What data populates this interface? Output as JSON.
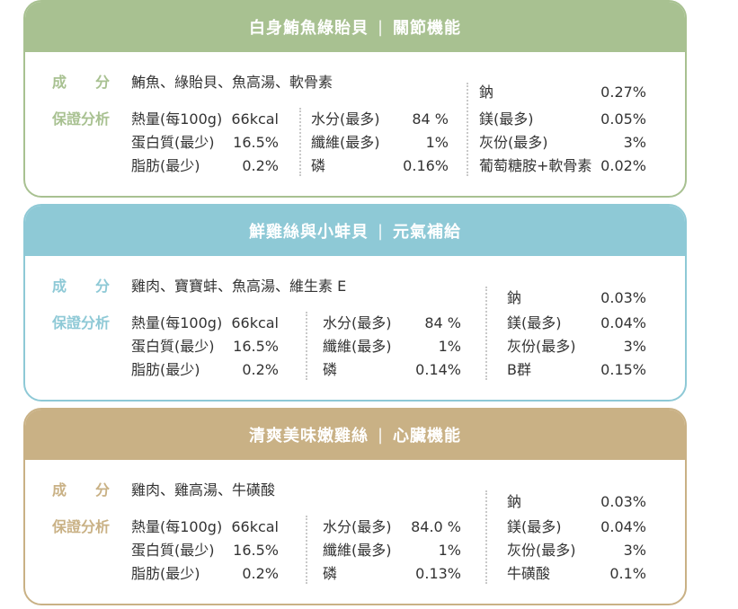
{
  "cards": [
    {
      "title": "白身鮪魚綠貽貝",
      "function": "關節機能",
      "color": "#a8c191",
      "ingredients_label": "成　　分",
      "ingredients": "鮪魚、綠貽貝、魚高湯、軟骨素",
      "guarantee_label": "保證分析",
      "col1": [
        {
          "name": "熱量(每100g)",
          "value": "66kcal"
        },
        {
          "name": "蛋白質(最少)",
          "value": "16.5%"
        },
        {
          "name": "脂肪(最少)",
          "value": "0.2%"
        }
      ],
      "col2": [
        {
          "name": "水分(最多)",
          "value": "84 %"
        },
        {
          "name": "纖維(最多)",
          "value": "1%"
        },
        {
          "name": "磷",
          "value": "0.16%"
        }
      ],
      "col3": [
        {
          "name": "鈉",
          "value": "0.27%"
        },
        {
          "name": "鎂(最多)",
          "value": "0.05%"
        },
        {
          "name": "灰份(最多)",
          "value": "3%"
        },
        {
          "name": "葡萄糖胺+軟骨素",
          "value": "0.02%"
        }
      ]
    },
    {
      "title": "鮮雞絲與小蚌貝",
      "function": "元氣補給",
      "color": "#8ec9d6",
      "ingredients_label": "成　　分",
      "ingredients": "雞肉、寶寶蚌、魚高湯、維生素 E",
      "guarantee_label": "保證分析",
      "col1": [
        {
          "name": "熱量(每100g)",
          "value": "66kcal"
        },
        {
          "name": "蛋白質(最少)",
          "value": "16.5%"
        },
        {
          "name": "脂肪(最少)",
          "value": "0.2%"
        }
      ],
      "col2": [
        {
          "name": "水分(最多)",
          "value": "84 %"
        },
        {
          "name": "纖維(最多)",
          "value": "1%"
        },
        {
          "name": "磷",
          "value": "0.14%"
        }
      ],
      "col3": [
        {
          "name": "鈉",
          "value": "0.03%"
        },
        {
          "name": "鎂(最多)",
          "value": "0.04%"
        },
        {
          "name": "灰份(最多)",
          "value": "3%"
        },
        {
          "name": "B群",
          "value": "0.15%"
        }
      ]
    },
    {
      "title": "清爽美味嫩雞絲",
      "function": "心臟機能",
      "color": "#c9b185",
      "ingredients_label": "成　　分",
      "ingredients": "雞肉、雞高湯、牛磺酸",
      "guarantee_label": "保證分析",
      "col1": [
        {
          "name": "熱量(每100g)",
          "value": "66kcal"
        },
        {
          "name": "蛋白質(最少)",
          "value": "16.5%"
        },
        {
          "name": "脂肪(最少)",
          "value": "0.2%"
        }
      ],
      "col2": [
        {
          "name": "水分(最多)",
          "value": "84.0 %"
        },
        {
          "name": "纖維(最多)",
          "value": "1%"
        },
        {
          "name": "磷",
          "value": "0.13%"
        }
      ],
      "col3": [
        {
          "name": "鈉",
          "value": "0.03%"
        },
        {
          "name": "鎂(最多)",
          "value": "0.04%"
        },
        {
          "name": "灰份(最多)",
          "value": "3%"
        },
        {
          "name": "牛磺酸",
          "value": "0.1%"
        }
      ]
    }
  ]
}
